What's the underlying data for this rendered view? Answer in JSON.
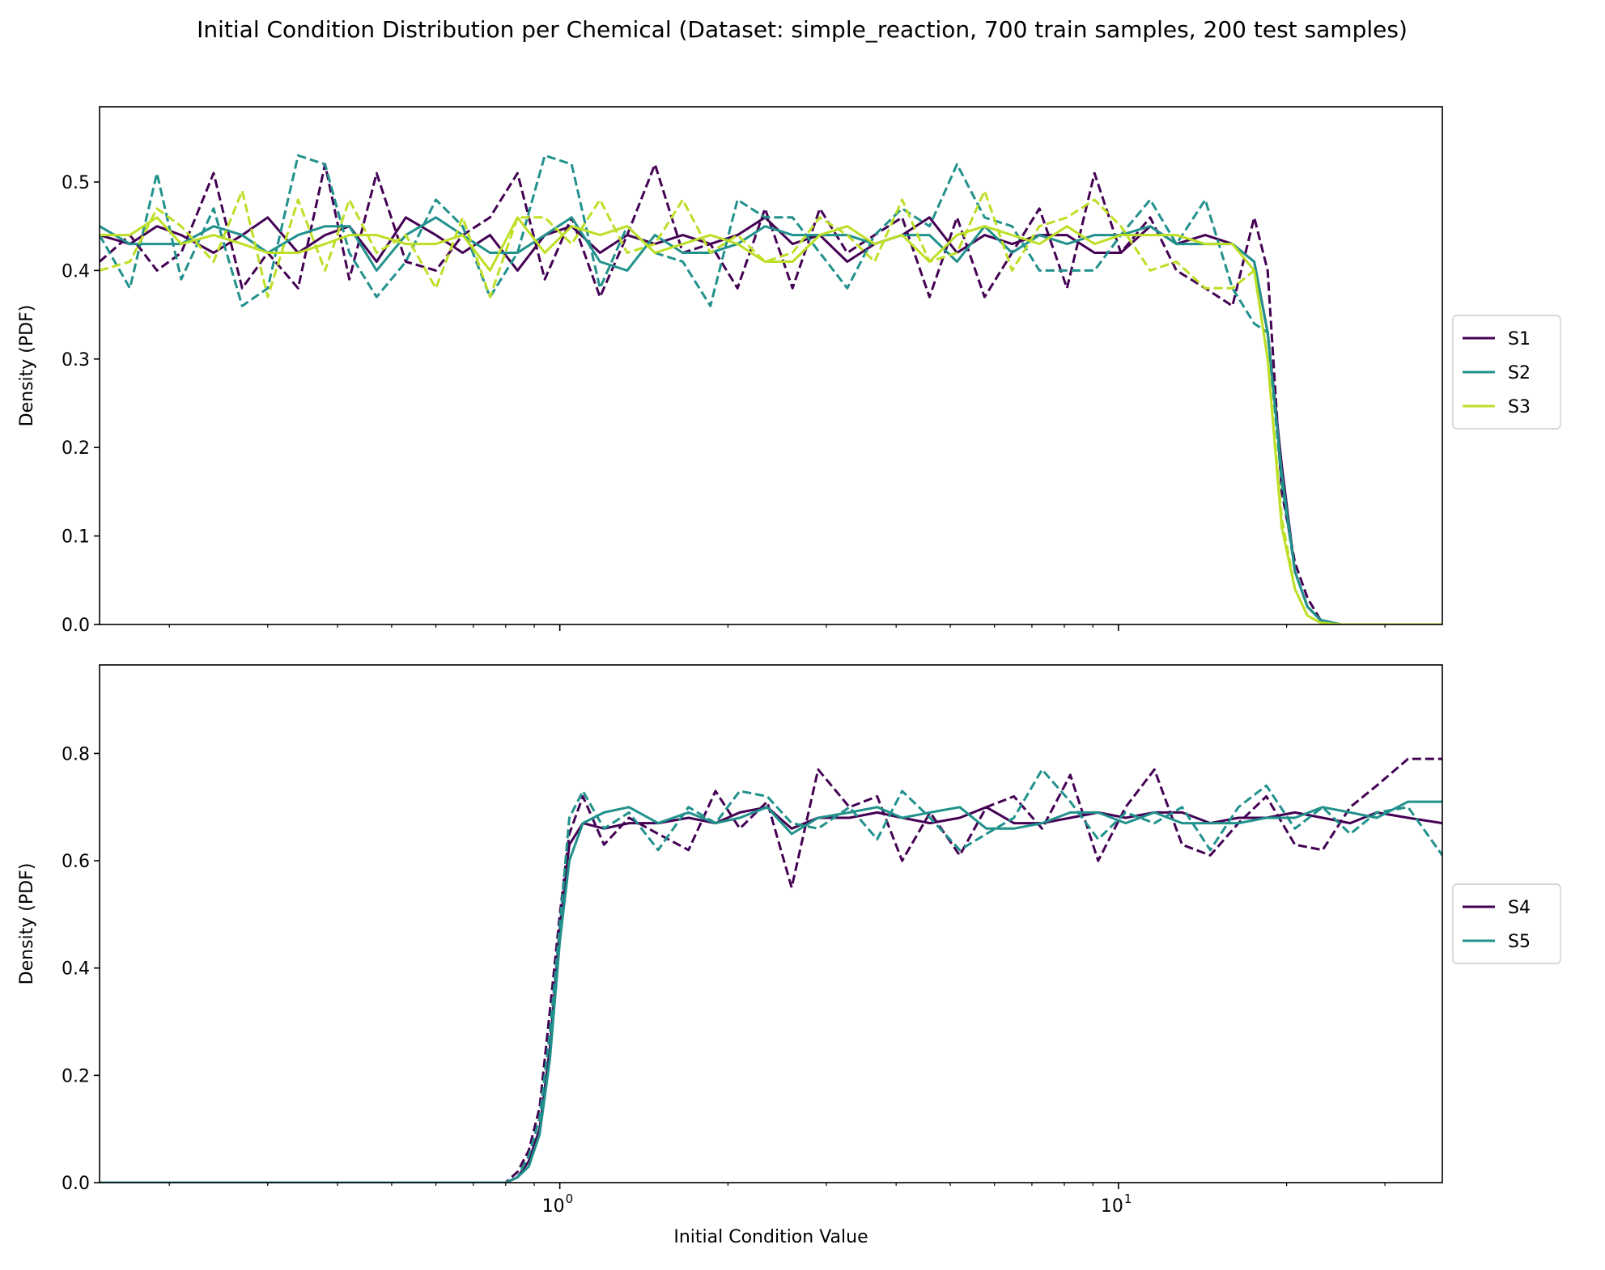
{
  "title": "Initial Condition Distribution per Chemical (Dataset: simple_reaction, 700 train samples, 200 test samples)",
  "colors": {
    "S1": "#440154",
    "S2": "#21918c",
    "S3": "#bddf26",
    "S4": "#440154",
    "S5": "#21918c"
  },
  "chart_data": [
    {
      "type": "line",
      "x_scale": "log",
      "xlim": [
        0.15,
        38
      ],
      "ylim": [
        0,
        0.585
      ],
      "yticks": [
        0.0,
        0.1,
        0.2,
        0.3,
        0.4,
        0.5
      ],
      "ytick_labels": [
        "0.0",
        "0.1",
        "0.2",
        "0.3",
        "0.4",
        "0.5"
      ],
      "ylabel": "Density (PDF)",
      "xlabel": "",
      "legend": "right",
      "legend_entries": [
        "S1",
        "S2",
        "S3"
      ],
      "series": [
        {
          "name": "S1",
          "style": "solid",
          "color": "#440154",
          "x": [
            0.15,
            0.17,
            0.19,
            0.21,
            0.24,
            0.27,
            0.3,
            0.34,
            0.38,
            0.42,
            0.47,
            0.53,
            0.6,
            0.67,
            0.75,
            0.84,
            0.94,
            1.05,
            1.18,
            1.32,
            1.48,
            1.66,
            1.86,
            2.08,
            2.33,
            2.61,
            2.92,
            3.27,
            3.66,
            4.1,
            4.59,
            5.14,
            5.76,
            6.45,
            7.22,
            8.09,
            9.06,
            10.1,
            11.4,
            12.7,
            14.3,
            16,
            17.5,
            18.5,
            19.6,
            20.7,
            21.8,
            23,
            25,
            28,
            32,
            38
          ],
          "y": [
            0.44,
            0.43,
            0.45,
            0.44,
            0.42,
            0.44,
            0.46,
            0.42,
            0.44,
            0.45,
            0.41,
            0.46,
            0.44,
            0.42,
            0.44,
            0.4,
            0.44,
            0.45,
            0.42,
            0.44,
            0.43,
            0.44,
            0.43,
            0.44,
            0.46,
            0.43,
            0.44,
            0.41,
            0.43,
            0.44,
            0.46,
            0.42,
            0.44,
            0.43,
            0.44,
            0.44,
            0.42,
            0.42,
            0.45,
            0.43,
            0.44,
            0.43,
            0.41,
            0.33,
            0.18,
            0.06,
            0.02,
            0.005,
            0,
            0,
            0,
            0
          ]
        },
        {
          "name": "S1 test",
          "style": "dashed",
          "color": "#440154",
          "x": [
            0.15,
            0.17,
            0.19,
            0.21,
            0.24,
            0.27,
            0.3,
            0.34,
            0.38,
            0.42,
            0.47,
            0.53,
            0.6,
            0.67,
            0.75,
            0.84,
            0.94,
            1.05,
            1.18,
            1.32,
            1.48,
            1.66,
            1.86,
            2.08,
            2.33,
            2.61,
            2.92,
            3.27,
            3.66,
            4.1,
            4.59,
            5.14,
            5.76,
            6.45,
            7.22,
            8.09,
            9.06,
            10.1,
            11.4,
            12.7,
            14.3,
            16,
            17.5,
            18.5,
            19.6,
            20.7,
            21.8,
            23,
            25,
            28,
            32,
            38
          ],
          "y": [
            0.41,
            0.44,
            0.4,
            0.42,
            0.51,
            0.38,
            0.42,
            0.38,
            0.52,
            0.39,
            0.51,
            0.41,
            0.4,
            0.44,
            0.46,
            0.51,
            0.39,
            0.46,
            0.37,
            0.44,
            0.52,
            0.42,
            0.43,
            0.38,
            0.47,
            0.38,
            0.47,
            0.42,
            0.44,
            0.46,
            0.37,
            0.46,
            0.37,
            0.42,
            0.47,
            0.38,
            0.51,
            0.42,
            0.46,
            0.4,
            0.38,
            0.36,
            0.46,
            0.4,
            0.15,
            0.07,
            0.03,
            0.005,
            0,
            0,
            0,
            0
          ]
        },
        {
          "name": "S2",
          "style": "solid",
          "color": "#21918c",
          "x": [
            0.15,
            0.17,
            0.19,
            0.21,
            0.24,
            0.27,
            0.3,
            0.34,
            0.38,
            0.42,
            0.47,
            0.53,
            0.6,
            0.67,
            0.75,
            0.84,
            0.94,
            1.05,
            1.18,
            1.32,
            1.48,
            1.66,
            1.86,
            2.08,
            2.33,
            2.61,
            2.92,
            3.27,
            3.66,
            4.1,
            4.59,
            5.14,
            5.76,
            6.45,
            7.22,
            8.09,
            9.06,
            10.1,
            11.4,
            12.7,
            14.3,
            16,
            17.5,
            18.5,
            19.6,
            20.7,
            21.8,
            23,
            25,
            28,
            32,
            38
          ],
          "y": [
            0.45,
            0.43,
            0.43,
            0.43,
            0.45,
            0.44,
            0.42,
            0.44,
            0.45,
            0.45,
            0.4,
            0.44,
            0.46,
            0.44,
            0.42,
            0.42,
            0.44,
            0.46,
            0.41,
            0.4,
            0.44,
            0.42,
            0.42,
            0.43,
            0.45,
            0.44,
            0.44,
            0.44,
            0.43,
            0.44,
            0.44,
            0.41,
            0.45,
            0.42,
            0.44,
            0.43,
            0.44,
            0.44,
            0.45,
            0.43,
            0.43,
            0.43,
            0.41,
            0.33,
            0.17,
            0.06,
            0.02,
            0.005,
            0,
            0,
            0,
            0
          ]
        },
        {
          "name": "S2 test",
          "style": "dashed",
          "color": "#21918c",
          "x": [
            0.15,
            0.17,
            0.19,
            0.21,
            0.24,
            0.27,
            0.3,
            0.34,
            0.38,
            0.42,
            0.47,
            0.53,
            0.6,
            0.67,
            0.75,
            0.84,
            0.94,
            1.05,
            1.18,
            1.32,
            1.48,
            1.66,
            1.86,
            2.08,
            2.33,
            2.61,
            2.92,
            3.27,
            3.66,
            4.1,
            4.59,
            5.14,
            5.76,
            6.45,
            7.22,
            8.09,
            9.06,
            10.1,
            11.4,
            12.7,
            14.3,
            16,
            17.5,
            18.5,
            19.6,
            20.7,
            21.8,
            23,
            25,
            28,
            32,
            38
          ],
          "y": [
            0.44,
            0.38,
            0.51,
            0.39,
            0.47,
            0.36,
            0.38,
            0.53,
            0.52,
            0.42,
            0.37,
            0.41,
            0.48,
            0.45,
            0.37,
            0.42,
            0.53,
            0.52,
            0.38,
            0.45,
            0.42,
            0.41,
            0.36,
            0.48,
            0.46,
            0.46,
            0.42,
            0.38,
            0.44,
            0.47,
            0.45,
            0.52,
            0.46,
            0.45,
            0.4,
            0.4,
            0.4,
            0.44,
            0.48,
            0.43,
            0.48,
            0.38,
            0.34,
            0.33,
            0.16,
            0.06,
            0.02,
            0.005,
            0,
            0,
            0,
            0
          ]
        },
        {
          "name": "S3",
          "style": "solid",
          "color": "#bddf26",
          "x": [
            0.15,
            0.17,
            0.19,
            0.21,
            0.24,
            0.27,
            0.3,
            0.34,
            0.38,
            0.42,
            0.47,
            0.53,
            0.6,
            0.67,
            0.75,
            0.84,
            0.94,
            1.05,
            1.18,
            1.32,
            1.48,
            1.66,
            1.86,
            2.08,
            2.33,
            2.61,
            2.92,
            3.27,
            3.66,
            4.1,
            4.59,
            5.14,
            5.76,
            6.45,
            7.22,
            8.09,
            9.06,
            10.1,
            11.4,
            12.7,
            14.3,
            16,
            17.5,
            18.5,
            19.6,
            20.7,
            21.8,
            23,
            25,
            28,
            32,
            38
          ],
          "y": [
            0.44,
            0.44,
            0.46,
            0.43,
            0.44,
            0.43,
            0.42,
            0.42,
            0.43,
            0.44,
            0.44,
            0.43,
            0.43,
            0.44,
            0.4,
            0.46,
            0.42,
            0.45,
            0.44,
            0.45,
            0.42,
            0.43,
            0.44,
            0.43,
            0.41,
            0.41,
            0.44,
            0.45,
            0.43,
            0.44,
            0.41,
            0.44,
            0.45,
            0.44,
            0.43,
            0.45,
            0.43,
            0.44,
            0.44,
            0.44,
            0.43,
            0.43,
            0.4,
            0.3,
            0.11,
            0.04,
            0.01,
            0.002,
            0,
            0,
            0,
            0
          ]
        },
        {
          "name": "S3 test",
          "style": "dashed",
          "color": "#bddf26",
          "x": [
            0.15,
            0.17,
            0.19,
            0.21,
            0.24,
            0.27,
            0.3,
            0.34,
            0.38,
            0.42,
            0.47,
            0.53,
            0.6,
            0.67,
            0.75,
            0.84,
            0.94,
            1.05,
            1.18,
            1.32,
            1.48,
            1.66,
            1.86,
            2.08,
            2.33,
            2.61,
            2.92,
            3.27,
            3.66,
            4.1,
            4.59,
            5.14,
            5.76,
            6.45,
            7.22,
            8.09,
            9.06,
            10.1,
            11.4,
            12.7,
            14.3,
            16,
            17.5,
            18.5,
            19.6,
            20.7,
            21.8,
            23,
            25,
            28,
            32,
            38
          ],
          "y": [
            0.4,
            0.41,
            0.47,
            0.45,
            0.41,
            0.49,
            0.37,
            0.48,
            0.4,
            0.48,
            0.42,
            0.44,
            0.38,
            0.46,
            0.37,
            0.46,
            0.46,
            0.43,
            0.48,
            0.42,
            0.43,
            0.48,
            0.42,
            0.44,
            0.41,
            0.42,
            0.46,
            0.44,
            0.41,
            0.48,
            0.41,
            0.42,
            0.49,
            0.4,
            0.45,
            0.46,
            0.48,
            0.45,
            0.4,
            0.41,
            0.38,
            0.38,
            0.4,
            0.3,
            0.12,
            0.04,
            0.01,
            0.002,
            0,
            0,
            0,
            0
          ]
        }
      ]
    },
    {
      "type": "line",
      "x_scale": "log",
      "xlim": [
        0.15,
        38
      ],
      "ylim": [
        0,
        0.965
      ],
      "yticks": [
        0.0,
        0.2,
        0.4,
        0.6,
        0.8
      ],
      "ytick_labels": [
        "0.0",
        "0.2",
        "0.4",
        "0.6",
        "0.8"
      ],
      "xticks": [
        1,
        10
      ],
      "ylabel": "Density (PDF)",
      "xlabel": "Initial Condition Value",
      "legend": "right",
      "legend_entries": [
        "S4",
        "S5"
      ],
      "series": [
        {
          "name": "S4",
          "style": "solid",
          "color": "#440154",
          "x": [
            0.15,
            0.3,
            0.6,
            0.8,
            0.84,
            0.88,
            0.92,
            0.96,
            1.0,
            1.04,
            1.1,
            1.2,
            1.33,
            1.5,
            1.7,
            1.9,
            2.1,
            2.35,
            2.6,
            2.9,
            3.3,
            3.7,
            4.1,
            4.6,
            5.2,
            5.8,
            6.5,
            7.3,
            8.2,
            9.2,
            10.3,
            11.6,
            13,
            14.6,
            16.4,
            18.4,
            20.7,
            23.2,
            26,
            29,
            33,
            38
          ],
          "y": [
            0,
            0,
            0,
            0,
            0.01,
            0.04,
            0.1,
            0.25,
            0.47,
            0.63,
            0.67,
            0.66,
            0.67,
            0.67,
            0.68,
            0.67,
            0.69,
            0.7,
            0.66,
            0.68,
            0.68,
            0.69,
            0.68,
            0.67,
            0.68,
            0.7,
            0.67,
            0.67,
            0.68,
            0.69,
            0.68,
            0.69,
            0.69,
            0.67,
            0.68,
            0.68,
            0.69,
            0.68,
            0.67,
            0.69,
            0.68,
            0.67
          ]
        },
        {
          "name": "S4 test",
          "style": "dashed",
          "color": "#440154",
          "x": [
            0.15,
            0.3,
            0.6,
            0.8,
            0.84,
            0.88,
            0.92,
            0.96,
            1.0,
            1.04,
            1.1,
            1.2,
            1.33,
            1.5,
            1.7,
            1.9,
            2.1,
            2.35,
            2.6,
            2.9,
            3.3,
            3.7,
            4.1,
            4.6,
            5.2,
            5.8,
            6.5,
            7.3,
            8.2,
            9.2,
            10.3,
            11.6,
            13,
            14.6,
            16.4,
            18.4,
            20.7,
            23.2,
            26,
            29,
            33,
            38
          ],
          "y": [
            0,
            0,
            0,
            0,
            0.02,
            0.06,
            0.14,
            0.32,
            0.5,
            0.65,
            0.72,
            0.63,
            0.68,
            0.65,
            0.62,
            0.73,
            0.66,
            0.71,
            0.55,
            0.77,
            0.7,
            0.72,
            0.6,
            0.69,
            0.61,
            0.7,
            0.72,
            0.66,
            0.76,
            0.6,
            0.7,
            0.77,
            0.63,
            0.61,
            0.67,
            0.72,
            0.63,
            0.62,
            0.7,
            0.74,
            0.79,
            0.79
          ]
        },
        {
          "name": "S5",
          "style": "solid",
          "color": "#21918c",
          "x": [
            0.15,
            0.3,
            0.6,
            0.8,
            0.84,
            0.88,
            0.92,
            0.96,
            1.0,
            1.04,
            1.1,
            1.2,
            1.33,
            1.5,
            1.7,
            1.9,
            2.1,
            2.35,
            2.6,
            2.9,
            3.3,
            3.7,
            4.1,
            4.6,
            5.2,
            5.8,
            6.5,
            7.3,
            8.2,
            9.2,
            10.3,
            11.6,
            13,
            14.6,
            16.4,
            18.4,
            20.7,
            23.2,
            26,
            29,
            33,
            38
          ],
          "y": [
            0,
            0,
            0,
            0,
            0.01,
            0.03,
            0.09,
            0.23,
            0.45,
            0.6,
            0.67,
            0.69,
            0.7,
            0.67,
            0.69,
            0.67,
            0.68,
            0.7,
            0.65,
            0.68,
            0.69,
            0.7,
            0.68,
            0.69,
            0.7,
            0.66,
            0.66,
            0.67,
            0.69,
            0.69,
            0.67,
            0.69,
            0.67,
            0.67,
            0.67,
            0.68,
            0.68,
            0.7,
            0.69,
            0.68,
            0.71,
            0.71
          ]
        },
        {
          "name": "S5 test",
          "style": "dashed",
          "color": "#21918c",
          "x": [
            0.15,
            0.3,
            0.6,
            0.8,
            0.84,
            0.88,
            0.92,
            0.96,
            1.0,
            1.04,
            1.1,
            1.2,
            1.33,
            1.5,
            1.7,
            1.9,
            2.1,
            2.35,
            2.6,
            2.9,
            3.3,
            3.7,
            4.1,
            4.6,
            5.2,
            5.8,
            6.5,
            7.3,
            8.2,
            9.2,
            10.3,
            11.6,
            13,
            14.6,
            16.4,
            18.4,
            20.7,
            23.2,
            26,
            29,
            33,
            38
          ],
          "y": [
            0,
            0,
            0,
            0,
            0.01,
            0.05,
            0.12,
            0.28,
            0.48,
            0.68,
            0.73,
            0.66,
            0.69,
            0.62,
            0.7,
            0.67,
            0.73,
            0.72,
            0.67,
            0.66,
            0.7,
            0.64,
            0.73,
            0.68,
            0.62,
            0.65,
            0.68,
            0.77,
            0.71,
            0.64,
            0.69,
            0.67,
            0.7,
            0.62,
            0.7,
            0.74,
            0.66,
            0.7,
            0.65,
            0.69,
            0.7,
            0.61
          ]
        }
      ]
    }
  ]
}
